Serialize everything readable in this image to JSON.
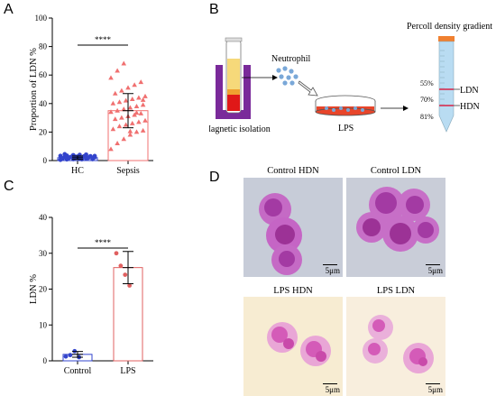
{
  "panel_letters": {
    "a": "A",
    "b": "B",
    "c": "C",
    "d": "D"
  },
  "chart_data": [
    {
      "type": "scatter",
      "panel": "A",
      "ylabel": "Proportion of LDN %",
      "xlabel": "",
      "categories": [
        "HC",
        "Sepsis"
      ],
      "yticks": [
        "0",
        "20",
        "40",
        "60",
        "80",
        "100"
      ],
      "ylim": [
        0,
        100
      ],
      "bar_means": [
        2,
        35
      ],
      "error_sd": [
        1.2,
        12
      ],
      "significance": "****",
      "series": [
        {
          "category": "HC",
          "color": "#3344cc",
          "marker": "circle",
          "values": [
            0.5,
            0.8,
            1,
            1.2,
            1.3,
            1.5,
            1.6,
            1.8,
            2,
            2,
            2.1,
            2.3,
            2.5,
            2.6,
            2.8,
            3,
            3.1,
            3.3,
            3.5,
            3.8,
            4,
            4.2,
            1,
            1.4,
            2.2,
            2.7,
            0.9,
            1.9,
            3.2,
            4.5
          ]
        },
        {
          "category": "Sepsis",
          "color": "#f07070",
          "marker": "triangle",
          "values": [
            8,
            12,
            15,
            18,
            20,
            21,
            22,
            24,
            25,
            26,
            27,
            28,
            29,
            30,
            31,
            32,
            33,
            34,
            35,
            36,
            37,
            38,
            39,
            40,
            41,
            42,
            43,
            44,
            45,
            47,
            49,
            51,
            53,
            55,
            58,
            63,
            68,
            20.5,
            33.5,
            42.5
          ]
        }
      ]
    },
    {
      "type": "scatter",
      "panel": "C",
      "ylabel": "LDN %",
      "xlabel": "",
      "categories": [
        "Control",
        "LPS"
      ],
      "yticks": [
        "0",
        "10",
        "20",
        "30",
        "40"
      ],
      "ylim": [
        0,
        40
      ],
      "bar_means": [
        1.8,
        26
      ],
      "error_sd": [
        0.8,
        4.5
      ],
      "significance": "****",
      "series": [
        {
          "category": "Control",
          "color": "#3344cc",
          "marker": "circle",
          "values": [
            1.2,
            1.6,
            2.7,
            1.0
          ]
        },
        {
          "category": "LPS",
          "color": "#e06060",
          "marker": "circle",
          "values": [
            30,
            26.5,
            24,
            21
          ]
        }
      ]
    }
  ],
  "diagram_b": {
    "neutrophil_label": "Neutrophil",
    "magnetic_label": "Magnetic isolation",
    "lps_label": "LPS",
    "percoll_label": "Percoll density gradient",
    "densities": [
      "55%",
      "70%",
      "81%"
    ],
    "layers": [
      "LDN",
      "HDN"
    ]
  },
  "micrographs": [
    {
      "label": "Control HDN",
      "scale": "5μm"
    },
    {
      "label": "Control LDN",
      "scale": "5μm"
    },
    {
      "label": "LPS HDN",
      "scale": "5μm"
    },
    {
      "label": "LPS LDN",
      "scale": "5μm"
    }
  ]
}
